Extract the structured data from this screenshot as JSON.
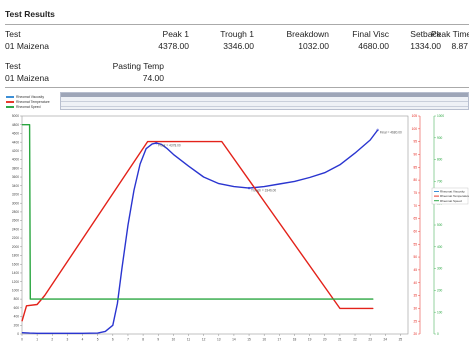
{
  "header": {
    "title": "Test Results"
  },
  "results_table_1": {
    "columns": [
      "Test",
      "Peak 1",
      "Trough 1",
      "Breakdown",
      "Final Visc",
      "Setback",
      "Peak Time"
    ],
    "row": [
      "01  Maizena",
      "4378.00",
      "3346.00",
      "1032.00",
      "4680.00",
      "1334.00",
      "8.87"
    ]
  },
  "results_table_2": {
    "columns": [
      "Test",
      "Pasting Temp"
    ],
    "row": [
      "01  Maizena",
      "74.00"
    ]
  },
  "legend": {
    "items": [
      {
        "label": "Rheomat Viscosity",
        "color": "#3d8fd6"
      },
      {
        "label": "Rheomat Temperature",
        "color": "#e63a2e"
      },
      {
        "label": "Rheomat Speed",
        "color": "#2ea84a"
      }
    ]
  },
  "colors": {
    "viscosity": "#2a35d0",
    "temperature": "#e3221a",
    "speed": "#2aa640"
  },
  "chart_data": {
    "type": "line",
    "xlim": [
      0,
      25.5
    ],
    "x_ticks": [
      0,
      1,
      2,
      3,
      4,
      5,
      6,
      7,
      8,
      9,
      10,
      11,
      12,
      13,
      14,
      15,
      16,
      17,
      18,
      19,
      20,
      21,
      22,
      23,
      24,
      25
    ],
    "y_left_lim": [
      0,
      5000
    ],
    "y_left_ticks": [
      0,
      200,
      400,
      600,
      800,
      1000,
      1200,
      1400,
      1600,
      1800,
      2000,
      2200,
      2400,
      2600,
      2800,
      3000,
      3200,
      3400,
      3600,
      3800,
      4000,
      4200,
      4400,
      4600,
      4800,
      5000
    ],
    "y_right_temp_lim": [
      20,
      105
    ],
    "y_right_temp_ticks": [
      20,
      25,
      30,
      35,
      40,
      45,
      50,
      55,
      60,
      65,
      70,
      75,
      80,
      85,
      90,
      95,
      100,
      105
    ],
    "y_right_speed_lim": [
      0,
      1000
    ],
    "y_right_speed_ticks": [
      0,
      100,
      200,
      300,
      400,
      500,
      600,
      700,
      800,
      900,
      1000
    ],
    "series": [
      {
        "name": "Rheomat Viscosity",
        "axis": "left",
        "x": [
          0,
          0.5,
          1,
          2,
          3,
          4,
          5,
          5.5,
          6,
          6.3,
          6.6,
          7,
          7.4,
          7.8,
          8.2,
          8.6,
          8.87,
          9.2,
          9.6,
          10,
          11,
          12,
          13,
          14,
          15,
          16,
          17,
          18,
          19,
          20,
          21,
          22,
          23,
          23.5
        ],
        "y": [
          30,
          20,
          15,
          15,
          15,
          15,
          20,
          60,
          200,
          700,
          1500,
          2500,
          3300,
          3900,
          4250,
          4360,
          4378,
          4350,
          4250,
          4120,
          3850,
          3600,
          3450,
          3380,
          3346,
          3380,
          3440,
          3500,
          3590,
          3700,
          3880,
          4150,
          4450,
          4680
        ]
      },
      {
        "name": "Rheomat Temperature",
        "axis": "right_temp",
        "x": [
          0,
          0.3,
          1,
          1.5,
          8.3,
          13.2,
          21,
          23.2
        ],
        "y": [
          25,
          31,
          31.5,
          35,
          95,
          95,
          30,
          30
        ]
      },
      {
        "name": "Rheomat Speed",
        "axis": "right_speed",
        "x": [
          0,
          0.5,
          0.55,
          23.2
        ],
        "y": [
          960,
          960,
          160,
          160
        ]
      }
    ],
    "annotations": [
      {
        "text": "Peak = 4378.00",
        "x": 8.87,
        "y": 4378
      },
      {
        "text": "Trough = 3346.00",
        "x": 15,
        "y": 3346
      },
      {
        "text": "Final = 4680.00",
        "x": 23.5,
        "y": 4680
      }
    ]
  }
}
